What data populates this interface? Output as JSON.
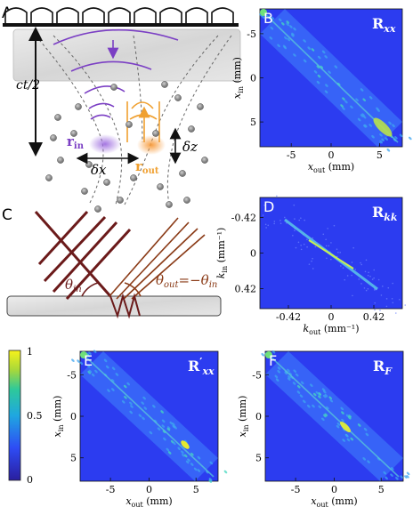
{
  "panel_labels": [
    "A",
    "B",
    "C",
    "D",
    "E",
    "F"
  ],
  "panel_a": {
    "depth_label": "ct/2",
    "r_in": "r",
    "r_in_sub": "in",
    "r_out": "r",
    "r_out_sub": "out",
    "delta_x": "δx",
    "delta_z": "δz"
  },
  "panel_c": {
    "theta_in": "θ",
    "theta_in_sub": "in",
    "theta_out": "θ",
    "theta_out_sub": "out",
    "theta_eq": "=−θ",
    "theta_eq_sub": "in"
  },
  "colorbar": {
    "max": "1",
    "mid": "0.5",
    "min": "0"
  },
  "colors": {
    "map_bg": "#2c3cf0",
    "purple": "#7b3fc4",
    "orange": "#f0a030",
    "maroon": "#6b1a1a",
    "brown": "#8a3a16"
  },
  "maps": [
    {
      "id": "B",
      "tag": "R",
      "sub": "xx",
      "prime": "",
      "yticks": [
        "-5",
        "0",
        "5"
      ],
      "xticks": [
        "-5",
        "0",
        "5"
      ],
      "ylabel": "x",
      "ylabel_sub": "in",
      "ylabel_unit": " (mm)",
      "xlabel": "x",
      "xlabel_sub": "out",
      "xlabel_unit": " (mm)"
    },
    {
      "id": "D",
      "tag": "R",
      "sub": "kk",
      "prime": "",
      "yticks": [
        "-0.42",
        "0",
        "0.42"
      ],
      "xticks": [
        "-0.42",
        "0",
        "0.42"
      ],
      "ylabel": "k",
      "ylabel_sub": "in",
      "ylabel_unit": " (mm⁻¹)",
      "xlabel": "k",
      "xlabel_sub": "out",
      "xlabel_unit": " (mm⁻¹)"
    },
    {
      "id": "E",
      "tag": "R",
      "sub": "xx",
      "prime": "′",
      "yticks": [
        "-5",
        "0",
        "5"
      ],
      "xticks": [
        "-5",
        "0",
        "5"
      ],
      "ylabel": "x",
      "ylabel_sub": "in",
      "ylabel_unit": " (mm)",
      "xlabel": "x",
      "xlabel_sub": "out",
      "xlabel_unit": " (mm)"
    },
    {
      "id": "F",
      "tag": "R",
      "sub": "F",
      "prime": "",
      "yticks": [
        "-5",
        "0",
        "5"
      ],
      "xticks": [
        "-5",
        "0",
        "5"
      ],
      "ylabel": "x",
      "ylabel_sub": "in",
      "ylabel_unit": " (mm)",
      "xlabel": "x",
      "xlabel_sub": "out",
      "xlabel_unit": " (mm)"
    }
  ]
}
